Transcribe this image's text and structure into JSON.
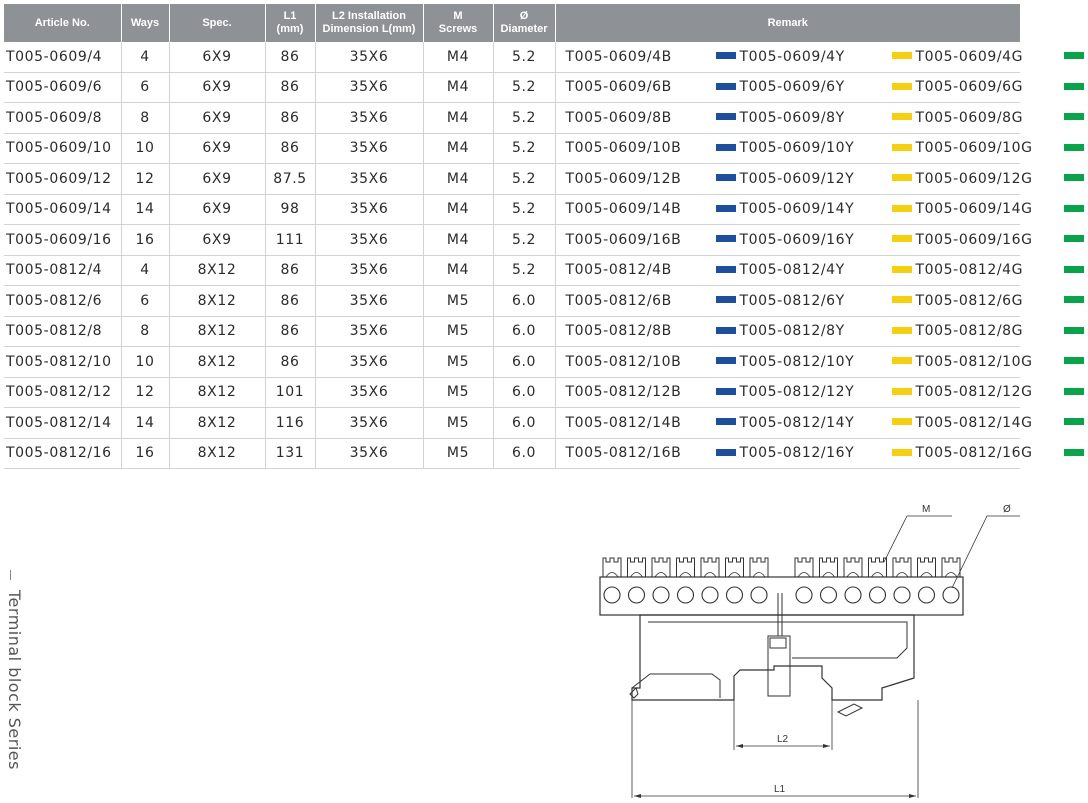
{
  "table": {
    "headers": [
      {
        "lines": [
          "Article No."
        ]
      },
      {
        "lines": [
          "Ways"
        ]
      },
      {
        "lines": [
          "Spec."
        ]
      },
      {
        "lines": [
          "L1",
          "(mm)"
        ]
      },
      {
        "lines": [
          "L2 Installation",
          "Dimension L(mm)"
        ]
      },
      {
        "lines": [
          "M",
          "Screws"
        ]
      },
      {
        "lines": [
          "Ø",
          "Diameter"
        ]
      },
      {
        "lines": [
          "Remark"
        ]
      }
    ],
    "rows": [
      {
        "article": "T005-0609/4",
        "ways": "4",
        "spec": "6X9",
        "l1": "86",
        "l2": "35X6",
        "m": "M4",
        "dia": "5.2",
        "blue": "T005-0609/4B",
        "yellow": "T005-0609/4Y",
        "green": "T005-0609/4G"
      },
      {
        "article": "T005-0609/6",
        "ways": "6",
        "spec": "6X9",
        "l1": "86",
        "l2": "35X6",
        "m": "M4",
        "dia": "5.2",
        "blue": "T005-0609/6B",
        "yellow": "T005-0609/6Y",
        "green": "T005-0609/6G"
      },
      {
        "article": "T005-0609/8",
        "ways": "8",
        "spec": "6X9",
        "l1": "86",
        "l2": "35X6",
        "m": "M4",
        "dia": "5.2",
        "blue": "T005-0609/8B",
        "yellow": "T005-0609/8Y",
        "green": "T005-0609/8G"
      },
      {
        "article": "T005-0609/10",
        "ways": "10",
        "spec": "6X9",
        "l1": "86",
        "l2": "35X6",
        "m": "M4",
        "dia": "5.2",
        "blue": "T005-0609/10B",
        "yellow": "T005-0609/10Y",
        "green": "T005-0609/10G"
      },
      {
        "article": "T005-0609/12",
        "ways": "12",
        "spec": "6X9",
        "l1": "87.5",
        "l2": "35X6",
        "m": "M4",
        "dia": "5.2",
        "blue": "T005-0609/12B",
        "yellow": "T005-0609/12Y",
        "green": "T005-0609/12G"
      },
      {
        "article": "T005-0609/14",
        "ways": "14",
        "spec": "6X9",
        "l1": "98",
        "l2": "35X6",
        "m": "M4",
        "dia": "5.2",
        "blue": "T005-0609/14B",
        "yellow": "T005-0609/14Y",
        "green": "T005-0609/14G"
      },
      {
        "article": "T005-0609/16",
        "ways": "16",
        "spec": "6X9",
        "l1": "111",
        "l2": "35X6",
        "m": "M4",
        "dia": "5.2",
        "blue": "T005-0609/16B",
        "yellow": "T005-0609/16Y",
        "green": "T005-0609/16G"
      },
      {
        "article": "T005-0812/4",
        "ways": "4",
        "spec": "8X12",
        "l1": "86",
        "l2": "35X6",
        "m": "M4",
        "dia": "5.2",
        "blue": "T005-0812/4B",
        "yellow": "T005-0812/4Y",
        "green": "T005-0812/4G"
      },
      {
        "article": "T005-0812/6",
        "ways": "6",
        "spec": "8X12",
        "l1": "86",
        "l2": "35X6",
        "m": "M5",
        "dia": "6.0",
        "blue": "T005-0812/6B",
        "yellow": "T005-0812/6Y",
        "green": "T005-0812/6G"
      },
      {
        "article": "T005-0812/8",
        "ways": "8",
        "spec": "8X12",
        "l1": "86",
        "l2": "35X6",
        "m": "M5",
        "dia": "6.0",
        "blue": "T005-0812/8B",
        "yellow": "T005-0812/8Y",
        "green": "T005-0812/8G"
      },
      {
        "article": "T005-0812/10",
        "ways": "10",
        "spec": "8X12",
        "l1": "86",
        "l2": "35X6",
        "m": "M5",
        "dia": "6.0",
        "blue": "T005-0812/10B",
        "yellow": "T005-0812/10Y",
        "green": "T005-0812/10G"
      },
      {
        "article": "T005-0812/12",
        "ways": "12",
        "spec": "8X12",
        "l1": "101",
        "l2": "35X6",
        "m": "M5",
        "dia": "6.0",
        "blue": "T005-0812/12B",
        "yellow": "T005-0812/12Y",
        "green": "T005-0812/12G"
      },
      {
        "article": "T005-0812/14",
        "ways": "14",
        "spec": "8X12",
        "l1": "116",
        "l2": "35X6",
        "m": "M5",
        "dia": "6.0",
        "blue": "T005-0812/14B",
        "yellow": "T005-0812/14Y",
        "green": "T005-0812/14G"
      },
      {
        "article": "T005-0812/16",
        "ways": "16",
        "spec": "8X12",
        "l1": "131",
        "l2": "35X6",
        "m": "M5",
        "dia": "6.0",
        "blue": "T005-0812/16B",
        "yellow": "T005-0812/16Y",
        "green": "T005-0812/16G"
      }
    ]
  },
  "colors": {
    "header_bg": "#8e9196",
    "blue": "#1d4f9c",
    "yellow": "#f5cf12",
    "green": "#0aa24b"
  },
  "side_label": "Terminal block Series",
  "drawing": {
    "label_m": "M",
    "label_dia": "Ø",
    "label_l1": "L1",
    "label_l2": "L2"
  }
}
